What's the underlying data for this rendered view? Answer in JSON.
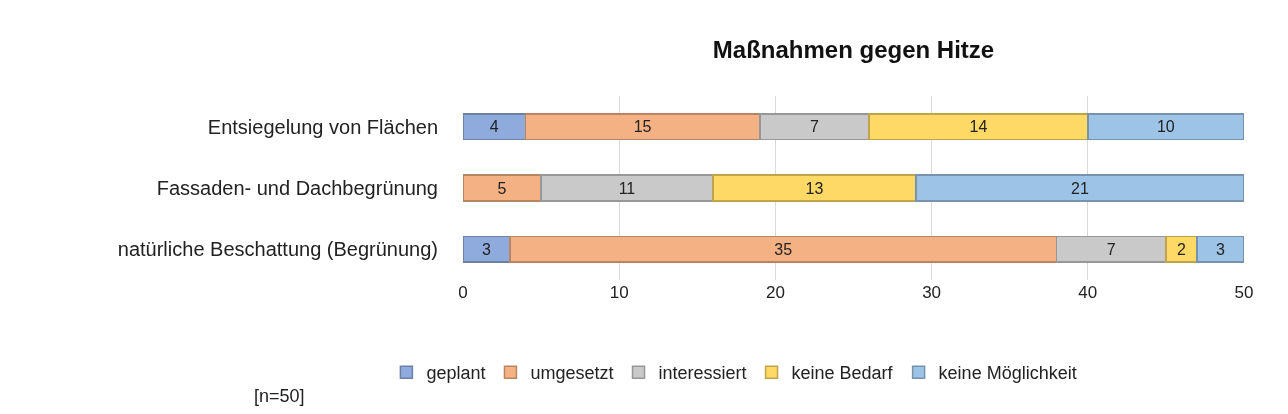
{
  "chart_data": {
    "type": "bar",
    "orientation": "horizontal",
    "stacked": true,
    "title": "Maßnahmen gegen Hitze",
    "categories": [
      "Entsiegelung von Flächen",
      "Fassaden- und Dachbegrünung",
      "natürliche Beschattung (Begrünung)"
    ],
    "series": [
      {
        "name": "geplant",
        "color": "#8faadc",
        "values": [
          4,
          null,
          3
        ]
      },
      {
        "name": "umgesetzt",
        "color": "#f4b183",
        "values": [
          15,
          5,
          35
        ]
      },
      {
        "name": "interessiert",
        "color": "#c9c9c9",
        "values": [
          7,
          11,
          7
        ]
      },
      {
        "name": "keine Bedarf",
        "color": "#ffd966",
        "values": [
          14,
          13,
          2
        ]
      },
      {
        "name": "keine Möglichkeit",
        "color": "#9dc3e6",
        "values": [
          10,
          21,
          3
        ]
      }
    ],
    "xlim": [
      0,
      50
    ],
    "xticks": [
      0,
      10,
      20,
      30,
      40,
      50
    ],
    "grid": "x",
    "legend": "bottom",
    "data_labels": true,
    "annotations": [
      "[n=50]"
    ]
  }
}
